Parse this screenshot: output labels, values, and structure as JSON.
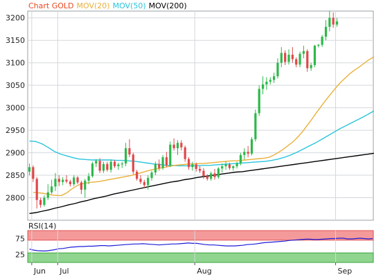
{
  "legend": [
    {
      "text": "Chart GOLD",
      "color": "#e8481e"
    },
    {
      "text": "MOV(20)",
      "color": "#e8b03a"
    },
    {
      "text": "MOV(50)",
      "color": "#29c4dc"
    },
    {
      "text": "MOV(200)",
      "color": "#000000"
    }
  ],
  "rsi_label": "RSI(14)",
  "colors": {
    "up": "#2db84a",
    "down": "#e0484a",
    "ma20": "#e8b03a",
    "ma50": "#29c4dc",
    "ma200": "#000000",
    "rsi": "#1b1bd8"
  },
  "chart_data": [
    {
      "type": "candlestick",
      "ylim": [
        2750,
        3215
      ],
      "y_ticks": [
        2800,
        2850,
        2900,
        2950,
        3000,
        3050,
        3100,
        3150,
        3200
      ],
      "x_labels": [
        {
          "label": "Jun",
          "i": 1
        },
        {
          "label": "Jul",
          "i": 8
        },
        {
          "label": "Aug",
          "i": 45
        },
        {
          "label": "Sep",
          "i": 83
        }
      ],
      "candles": [
        [
          2858,
          2876,
          2850,
          2868
        ],
        [
          2868,
          2872,
          2835,
          2842
        ],
        [
          2842,
          2846,
          2776,
          2795
        ],
        [
          2795,
          2800,
          2778,
          2784
        ],
        [
          2784,
          2805,
          2780,
          2800
        ],
        [
          2800,
          2830,
          2795,
          2812
        ],
        [
          2812,
          2840,
          2808,
          2825
        ],
        [
          2825,
          2855,
          2815,
          2842
        ],
        [
          2842,
          2850,
          2826,
          2835
        ],
        [
          2835,
          2846,
          2828,
          2840
        ],
        [
          2840,
          2850,
          2832,
          2836
        ],
        [
          2836,
          2840,
          2825,
          2830
        ],
        [
          2830,
          2850,
          2826,
          2845
        ],
        [
          2845,
          2848,
          2830,
          2834
        ],
        [
          2834,
          2838,
          2808,
          2818
        ],
        [
          2818,
          2842,
          2800,
          2838
        ],
        [
          2838,
          2855,
          2830,
          2848
        ],
        [
          2848,
          2880,
          2845,
          2876
        ],
        [
          2876,
          2886,
          2868,
          2882
        ],
        [
          2882,
          2888,
          2855,
          2860
        ],
        [
          2860,
          2880,
          2855,
          2875
        ],
        [
          2875,
          2880,
          2858,
          2862
        ],
        [
          2862,
          2885,
          2856,
          2880
        ],
        [
          2880,
          2884,
          2866,
          2870
        ],
        [
          2870,
          2878,
          2862,
          2874
        ],
        [
          2874,
          2880,
          2866,
          2876
        ],
        [
          2876,
          2922,
          2870,
          2910
        ],
        [
          2910,
          2930,
          2890,
          2896
        ],
        [
          2896,
          2900,
          2852,
          2858
        ],
        [
          2858,
          2862,
          2838,
          2842
        ],
        [
          2842,
          2850,
          2830,
          2835
        ],
        [
          2835,
          2840,
          2822,
          2828
        ],
        [
          2828,
          2850,
          2818,
          2844
        ],
        [
          2844,
          2860,
          2838,
          2856
        ],
        [
          2856,
          2880,
          2850,
          2875
        ],
        [
          2875,
          2885,
          2860,
          2866
        ],
        [
          2866,
          2895,
          2862,
          2890
        ],
        [
          2890,
          2902,
          2868,
          2872
        ],
        [
          2872,
          2925,
          2868,
          2918
        ],
        [
          2918,
          2932,
          2905,
          2910
        ],
        [
          2910,
          2928,
          2895,
          2922
        ],
        [
          2922,
          2928,
          2905,
          2912
        ],
        [
          2912,
          2916,
          2880,
          2886
        ],
        [
          2886,
          2890,
          2862,
          2868
        ],
        [
          2868,
          2880,
          2860,
          2874
        ],
        [
          2874,
          2878,
          2858,
          2864
        ],
        [
          2864,
          2870,
          2855,
          2860
        ],
        [
          2860,
          2866,
          2842,
          2848
        ],
        [
          2848,
          2852,
          2838,
          2842
        ],
        [
          2842,
          2858,
          2838,
          2854
        ],
        [
          2854,
          2864,
          2840,
          2846
        ],
        [
          2846,
          2868,
          2842,
          2865
        ],
        [
          2865,
          2876,
          2856,
          2870
        ],
        [
          2870,
          2880,
          2862,
          2874
        ],
        [
          2874,
          2878,
          2862,
          2866
        ],
        [
          2866,
          2872,
          2860,
          2870
        ],
        [
          2870,
          2880,
          2865,
          2876
        ],
        [
          2876,
          2900,
          2872,
          2895
        ],
        [
          2895,
          2910,
          2885,
          2902
        ],
        [
          2902,
          2915,
          2890,
          2898
        ],
        [
          2898,
          2935,
          2894,
          2930
        ],
        [
          2930,
          2996,
          2925,
          2988
        ],
        [
          2988,
          3050,
          2982,
          3042
        ],
        [
          3042,
          3070,
          3030,
          3052
        ],
        [
          3052,
          3068,
          3040,
          3058
        ],
        [
          3058,
          3068,
          3052,
          3062
        ],
        [
          3062,
          3078,
          3055,
          3070
        ],
        [
          3070,
          3110,
          3065,
          3100
        ],
        [
          3100,
          3135,
          3090,
          3122
        ],
        [
          3122,
          3128,
          3095,
          3102
        ],
        [
          3102,
          3130,
          3096,
          3118
        ],
        [
          3118,
          3135,
          3100,
          3108
        ],
        [
          3108,
          3112,
          3090,
          3096
        ],
        [
          3096,
          3125,
          3090,
          3120
        ],
        [
          3120,
          3138,
          3110,
          3126
        ],
        [
          3126,
          3130,
          3080,
          3088
        ],
        [
          3088,
          3100,
          3082,
          3095
        ],
        [
          3095,
          3140,
          3090,
          3138
        ],
        [
          3138,
          3142,
          3134,
          3140
        ],
        [
          3140,
          3162,
          3135,
          3158
        ],
        [
          3158,
          3195,
          3150,
          3180
        ],
        [
          3180,
          3215,
          3170,
          3200
        ],
        [
          3200,
          3212,
          3178,
          3185
        ],
        [
          3185,
          3200,
          3180,
          3192
        ]
      ],
      "ma20": [
        2812,
        2811,
        2810,
        2808,
        2806,
        2805,
        2805,
        2810,
        2818,
        2825,
        2830,
        2832,
        2834,
        2835,
        2836,
        2838,
        2840,
        2842,
        2844,
        2846,
        2848,
        2850,
        2853,
        2856,
        2859,
        2862,
        2864,
        2866,
        2868,
        2870,
        2872,
        2873,
        2874,
        2875,
        2875,
        2876,
        2876,
        2877,
        2878,
        2879,
        2880,
        2881,
        2882,
        2882,
        2883,
        2884,
        2885,
        2886,
        2887,
        2888,
        2890,
        2895,
        2901,
        2908,
        2916,
        2924,
        2934,
        2946,
        2960,
        2974,
        2989,
        3003,
        3017,
        3030,
        3043,
        3055,
        3065,
        3075,
        3083,
        3090,
        3098,
        3106,
        3112,
        3118
      ],
      "ma50": [
        2926,
        2925,
        2920,
        2912,
        2903,
        2897,
        2893,
        2889,
        2886,
        2885,
        2884,
        2884,
        2884,
        2884,
        2883,
        2883,
        2882,
        2881,
        2879,
        2877,
        2875,
        2874,
        2872,
        2872,
        2871,
        2871,
        2871,
        2871,
        2872,
        2872,
        2873,
        2874,
        2875,
        2876,
        2877,
        2878,
        2879,
        2880,
        2881,
        2883,
        2886,
        2890,
        2895,
        2901,
        2908,
        2915,
        2922,
        2930,
        2938,
        2946,
        2954,
        2961,
        2968,
        2975,
        2982,
        2990,
        2997
      ],
      "ma200": [
        2765,
        2767,
        2770,
        2773,
        2777,
        2780,
        2784,
        2787,
        2791,
        2794,
        2798,
        2801,
        2804,
        2808,
        2811,
        2814,
        2817,
        2820,
        2823,
        2826,
        2829,
        2832,
        2835,
        2837,
        2840,
        2842,
        2845,
        2847,
        2849,
        2851,
        2853,
        2855,
        2857,
        2858,
        2860,
        2862,
        2864,
        2866,
        2868,
        2870,
        2872,
        2874,
        2876,
        2878,
        2880,
        2882,
        2884,
        2886,
        2888,
        2890,
        2892,
        2894,
        2896,
        2898,
        2900
      ],
      "ma20_x": [
        1,
        94
      ],
      "ma50_x": [
        0,
        94
      ],
      "ma200_x": [
        0,
        94
      ]
    },
    {
      "type": "line",
      "name": "RSI(14)",
      "ylim": [
        0,
        100
      ],
      "y_ticks": [
        25,
        75
      ],
      "bands": {
        "upper": [
          70,
          100
        ],
        "lower": [
          0,
          30
        ]
      },
      "values": [
        42,
        39,
        37,
        36,
        36,
        38,
        40,
        43,
        44,
        46,
        48,
        49,
        50,
        50,
        51,
        51,
        52,
        53,
        53,
        52,
        53,
        54,
        55,
        56,
        57,
        58,
        58,
        59,
        58,
        57,
        56,
        55,
        56,
        57,
        58,
        58,
        59,
        60,
        61,
        60,
        60,
        58,
        56,
        55,
        55,
        54,
        53,
        52,
        52,
        52,
        53,
        54,
        56,
        57,
        58,
        60,
        62,
        63,
        64,
        65,
        66,
        67,
        69,
        70,
        71,
        72,
        73,
        73,
        72,
        72,
        73,
        74,
        75,
        75,
        76,
        76,
        74,
        74,
        75,
        76,
        75,
        74,
        75
      ]
    }
  ]
}
